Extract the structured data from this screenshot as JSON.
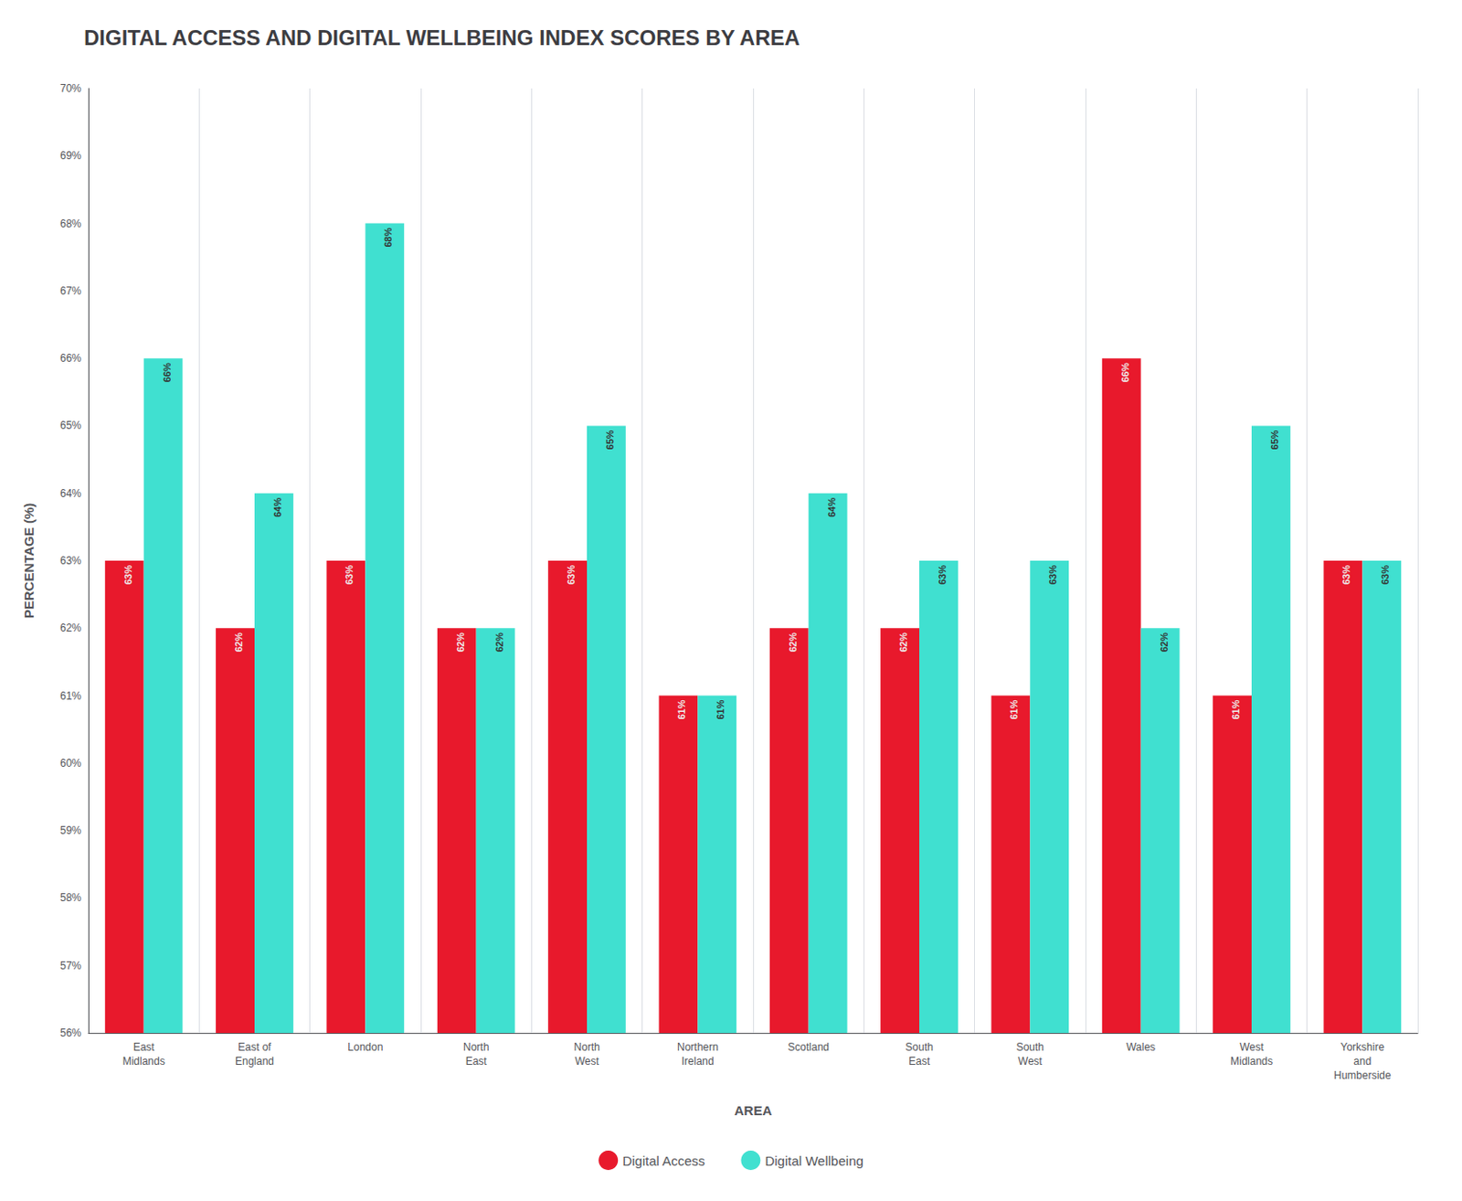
{
  "chart_data": {
    "type": "bar",
    "title": "DIGITAL ACCESS AND DIGITAL WELLBEING INDEX SCORES BY AREA",
    "xlabel": "AREA",
    "ylabel": "PERCENTAGE (%)",
    "categories": [
      "East\nMidlands",
      "East of\nEngland",
      "London",
      "North\nEast",
      "North\nWest",
      "Northern\nIreland",
      "Scotland",
      "South\nEast",
      "South\nWest",
      "Wales",
      "West\nMidlands",
      "Yorkshire\nand\nHumberside"
    ],
    "series": [
      {
        "name": "Digital Access",
        "color": "#e8192c",
        "values": [
          63,
          62,
          63,
          62,
          63,
          61,
          62,
          62,
          61,
          66,
          61,
          63
        ],
        "value_labels": [
          "63%",
          "62%",
          "63%",
          "62%",
          "63%",
          "61%",
          "62%",
          "62%",
          "61%",
          "66%",
          "61%",
          "63%"
        ]
      },
      {
        "name": "Digital Wellbeing",
        "color": "#40e0d0",
        "values": [
          66,
          64,
          68,
          62,
          65,
          61,
          64,
          63,
          63,
          62,
          65,
          63
        ],
        "value_labels": [
          "66%",
          "64%",
          "68%",
          "62%",
          "65%",
          "61%",
          "64%",
          "63%",
          "63%",
          "62%",
          "65%",
          "63%"
        ]
      }
    ],
    "ylim": [
      56,
      70
    ],
    "yticks": [
      {
        "value": 56,
        "label": "56%"
      },
      {
        "value": 57,
        "label": "57%"
      },
      {
        "value": 58,
        "label": "58%"
      },
      {
        "value": 59,
        "label": "59%"
      },
      {
        "value": 60,
        "label": "60%"
      },
      {
        "value": 61,
        "label": "61%"
      },
      {
        "value": 62,
        "label": "62%"
      },
      {
        "value": 63,
        "label": "63%"
      },
      {
        "value": 64,
        "label": "64%"
      },
      {
        "value": 65,
        "label": "65%"
      },
      {
        "value": 66,
        "label": "66%"
      },
      {
        "value": 67,
        "label": "67%"
      },
      {
        "value": 68,
        "label": "68%"
      },
      {
        "value": 69,
        "label": "69%"
      },
      {
        "value": 70,
        "label": "70%"
      }
    ],
    "grid": "x",
    "legend": "bottom",
    "data_labels": true
  }
}
